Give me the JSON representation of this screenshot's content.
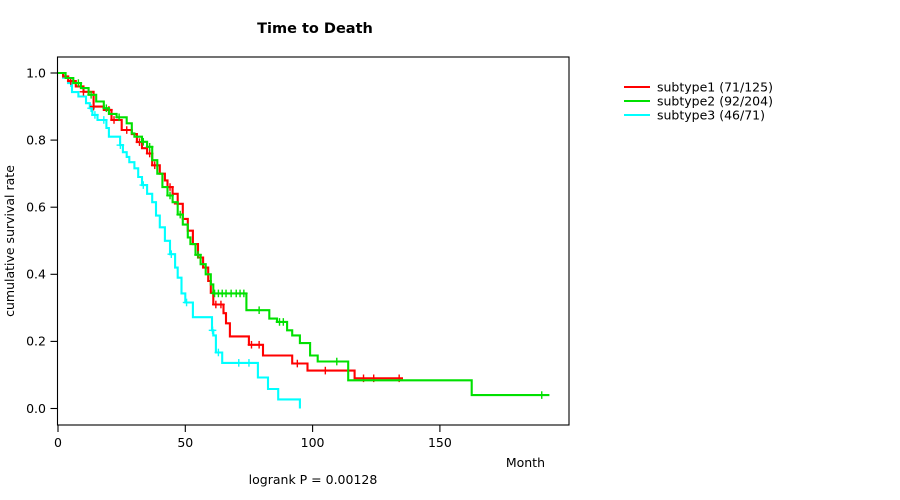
{
  "chart_data": {
    "type": "line",
    "variant": "kaplan-meier-step",
    "title": "Time to Death",
    "xlabel": "Month",
    "ylabel": "cumulative survival rate",
    "annotation": "logrank P = 0.00128",
    "xlim": [
      0,
      200
    ],
    "ylim": [
      0,
      1
    ],
    "x_ticks": [
      0,
      50,
      100,
      150
    ],
    "y_ticks": [
      0.0,
      0.2,
      0.4,
      0.6,
      0.8,
      1.0
    ],
    "grid": false,
    "legend_position": "right-outside",
    "series": [
      {
        "name": "subtype1 (71/125)",
        "color": "#ff0000",
        "end_month": 135.5,
        "steps": [
          [
            0,
            1.0
          ],
          [
            2,
            0.99
          ],
          [
            4,
            0.976
          ],
          [
            7,
            0.96
          ],
          [
            10,
            0.944
          ],
          [
            14,
            0.9
          ],
          [
            18,
            0.89
          ],
          [
            21,
            0.86
          ],
          [
            25,
            0.83
          ],
          [
            29,
            0.818
          ],
          [
            31,
            0.794
          ],
          [
            33,
            0.776
          ],
          [
            35,
            0.76
          ],
          [
            37,
            0.725
          ],
          [
            40,
            0.7
          ],
          [
            42,
            0.68
          ],
          [
            43,
            0.66
          ],
          [
            45,
            0.64
          ],
          [
            47,
            0.61
          ],
          [
            49,
            0.565
          ],
          [
            51,
            0.53
          ],
          [
            53,
            0.49
          ],
          [
            55,
            0.45
          ],
          [
            57,
            0.42
          ],
          [
            59,
            0.38
          ],
          [
            60,
            0.345
          ],
          [
            61,
            0.31
          ],
          [
            65,
            0.284
          ],
          [
            66,
            0.254
          ],
          [
            67.5,
            0.215
          ],
          [
            75,
            0.19
          ],
          [
            80.5,
            0.158
          ],
          [
            92,
            0.134
          ],
          [
            98,
            0.113
          ],
          [
            116.5,
            0.09
          ]
        ],
        "censor_months": [
          5,
          10,
          14,
          20,
          22,
          27,
          32,
          36,
          38,
          44,
          47,
          62,
          64,
          76,
          79,
          94,
          105,
          120,
          124,
          134
        ]
      },
      {
        "name": "subtype2 (92/204)",
        "color": "#00e000",
        "end_month": 193,
        "steps": [
          [
            0,
            1.0
          ],
          [
            3,
            0.985
          ],
          [
            6,
            0.97
          ],
          [
            9,
            0.955
          ],
          [
            12,
            0.935
          ],
          [
            15,
            0.915
          ],
          [
            18,
            0.895
          ],
          [
            20,
            0.878
          ],
          [
            23,
            0.868
          ],
          [
            27,
            0.85
          ],
          [
            29,
            0.82
          ],
          [
            30,
            0.81
          ],
          [
            33,
            0.795
          ],
          [
            35,
            0.78
          ],
          [
            37,
            0.74
          ],
          [
            39,
            0.7
          ],
          [
            41,
            0.66
          ],
          [
            43,
            0.635
          ],
          [
            45,
            0.615
          ],
          [
            47,
            0.578
          ],
          [
            49,
            0.548
          ],
          [
            51,
            0.51
          ],
          [
            52,
            0.49
          ],
          [
            54,
            0.458
          ],
          [
            56,
            0.43
          ],
          [
            58,
            0.4
          ],
          [
            60,
            0.37
          ],
          [
            61,
            0.343
          ],
          [
            74,
            0.293
          ],
          [
            83,
            0.268
          ],
          [
            86,
            0.258
          ],
          [
            90,
            0.233
          ],
          [
            92,
            0.218
          ],
          [
            95,
            0.195
          ],
          [
            99,
            0.158
          ],
          [
            102,
            0.14
          ],
          [
            114,
            0.084
          ],
          [
            162.5,
            0.04
          ]
        ],
        "censor_months": [
          8,
          13,
          19,
          24,
          33.5,
          36,
          44,
          48,
          55,
          61.5,
          63,
          64.5,
          66,
          68,
          70,
          71.5,
          73,
          79,
          87,
          88.5,
          109.5,
          190
        ]
      },
      {
        "name": "subtype3 (46/71)",
        "color": "#00ffff",
        "end_month": 95,
        "steps": [
          [
            0,
            1.0
          ],
          [
            2,
            0.986
          ],
          [
            4,
            0.97
          ],
          [
            5.5,
            0.943
          ],
          [
            8,
            0.93
          ],
          [
            11,
            0.91
          ],
          [
            12.5,
            0.895
          ],
          [
            13.5,
            0.875
          ],
          [
            15.5,
            0.86
          ],
          [
            19,
            0.836
          ],
          [
            20,
            0.81
          ],
          [
            24.4,
            0.785
          ],
          [
            25.5,
            0.764
          ],
          [
            27,
            0.75
          ],
          [
            28,
            0.734
          ],
          [
            30,
            0.716
          ],
          [
            31.5,
            0.69
          ],
          [
            33,
            0.666
          ],
          [
            35,
            0.64
          ],
          [
            37,
            0.615
          ],
          [
            38.5,
            0.575
          ],
          [
            40,
            0.54
          ],
          [
            42,
            0.5
          ],
          [
            44,
            0.46
          ],
          [
            46,
            0.42
          ],
          [
            47,
            0.39
          ],
          [
            48.5,
            0.343
          ],
          [
            50,
            0.316
          ],
          [
            53,
            0.272
          ],
          [
            60.5,
            0.233
          ],
          [
            61,
            0.218
          ],
          [
            62,
            0.167
          ],
          [
            64.5,
            0.136
          ],
          [
            78.5,
            0.0925
          ],
          [
            82.5,
            0.058
          ],
          [
            86.5,
            0.027
          ],
          [
            95,
            0.0
          ]
        ],
        "censor_months": [
          5,
          13,
          14.5,
          18,
          24.5,
          33.5,
          44.5,
          50.5,
          60.7,
          63,
          71,
          75
        ]
      }
    ]
  }
}
